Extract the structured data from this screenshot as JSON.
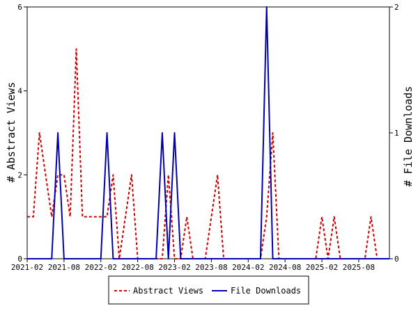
{
  "chart_data": {
    "type": "line",
    "x_start": "2021-02",
    "x_step": "month",
    "x_ticks": [
      "2021-02",
      "2021-08",
      "2022-02",
      "2022-08",
      "2023-02",
      "2023-08",
      "2024-02",
      "2024-08",
      "2025-02",
      "2025-08"
    ],
    "ylabel_left": "# Abstract Views",
    "ylabel_right": "# File Downloads",
    "ylim_left": [
      0,
      6
    ],
    "ylim_right": [
      0,
      2
    ],
    "yticks_left": [
      "0",
      "2",
      "4",
      "6"
    ],
    "yticks_right": [
      "0",
      "1",
      "2"
    ],
    "legend_placement": "bottom-center",
    "series": [
      {
        "name": "Abstract Views",
        "axis": "left",
        "color": "#cc0000",
        "style": "dashed",
        "values": [
          1,
          1,
          3,
          2,
          1,
          2,
          2,
          1,
          5,
          1,
          1,
          1,
          1,
          1,
          2,
          0,
          1,
          2,
          0,
          0,
          0,
          0,
          0,
          2,
          0,
          0,
          1,
          0,
          0,
          0,
          1,
          2,
          0,
          0,
          0,
          0,
          0,
          0,
          0,
          1,
          3,
          0,
          0,
          0,
          0,
          0,
          0,
          0,
          1,
          0,
          1,
          0,
          0,
          0,
          0,
          0,
          1,
          0,
          0,
          0
        ]
      },
      {
        "name": "File Downloads",
        "axis": "right",
        "color": "#0000aa",
        "style": "solid",
        "values": [
          0,
          0,
          0,
          0,
          0,
          1,
          0,
          0,
          0,
          0,
          0,
          0,
          0,
          1,
          0,
          0,
          0,
          0,
          0,
          0,
          0,
          0,
          1,
          0,
          1,
          0,
          0,
          0,
          0,
          0,
          0,
          0,
          0,
          0,
          0,
          0,
          0,
          0,
          0,
          2,
          0,
          0,
          0,
          0,
          0,
          0,
          0,
          0,
          0,
          0,
          0,
          0,
          0,
          0,
          0,
          0,
          0,
          0,
          0,
          0
        ]
      }
    ]
  }
}
